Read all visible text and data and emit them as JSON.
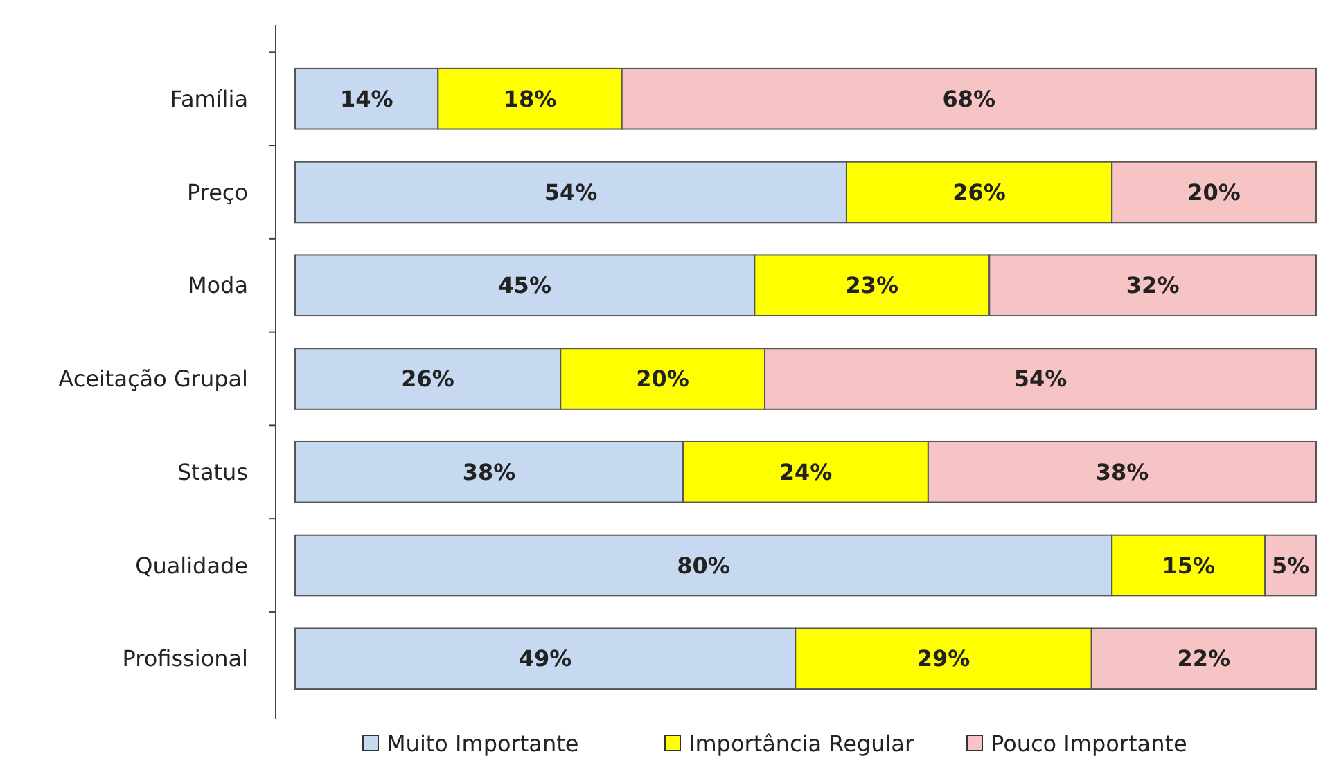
{
  "chart_data": {
    "type": "bar",
    "orientation": "horizontal",
    "stacked": true,
    "legend": "bottom",
    "categories": [
      "Família",
      "Preço",
      "Moda",
      "Aceitação Grupal",
      "Status",
      "Qualidade",
      "Profissional"
    ],
    "series": [
      {
        "name": "Muito Importante",
        "color": "#c6d9f1",
        "values": [
          14,
          54,
          45,
          26,
          38,
          80,
          49
        ],
        "value_labels": [
          "14%",
          "54%",
          "45%",
          "26%",
          "38%",
          "80%",
          "49%"
        ]
      },
      {
        "name": "Importância Regular",
        "color": "#ffff00",
        "values": [
          18,
          26,
          23,
          20,
          24,
          15,
          29
        ],
        "value_labels": [
          "18%",
          "26%",
          "23%",
          "20%",
          "24%",
          "15%",
          "29%"
        ]
      },
      {
        "name": "Pouco Importante",
        "color": "#f6c4c4",
        "values": [
          68,
          20,
          32,
          54,
          38,
          5,
          22
        ],
        "value_labels": [
          "68%",
          "20%",
          "32%",
          "54%",
          "38%",
          "5%",
          "22%"
        ]
      }
    ]
  }
}
